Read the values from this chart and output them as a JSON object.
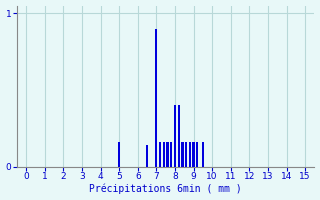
{
  "xlabel": "Précipitations 6min ( mm )",
  "bar_color": "#0000dd",
  "background_color": "#e8f8f8",
  "grid_color": "#b8d8d8",
  "text_color": "#0000cc",
  "xlim": [
    -0.5,
    15.5
  ],
  "ylim": [
    0,
    1.05
  ],
  "yticks": [
    0,
    1
  ],
  "ytick_labels": [
    "0",
    "1"
  ],
  "xticks": [
    0,
    1,
    2,
    3,
    4,
    5,
    6,
    7,
    8,
    9,
    10,
    11,
    12,
    13,
    14,
    15
  ],
  "bar_positions": [
    5.0,
    6.5,
    7.0,
    7.2,
    7.4,
    7.6,
    7.8,
    8.0,
    8.2,
    8.4,
    8.6,
    8.8,
    9.0,
    9.2,
    9.5
  ],
  "bar_heights": [
    0.16,
    0.14,
    0.9,
    0.16,
    0.16,
    0.16,
    0.16,
    0.4,
    0.4,
    0.16,
    0.16,
    0.16,
    0.16,
    0.16,
    0.16
  ],
  "bar_width": 0.12
}
